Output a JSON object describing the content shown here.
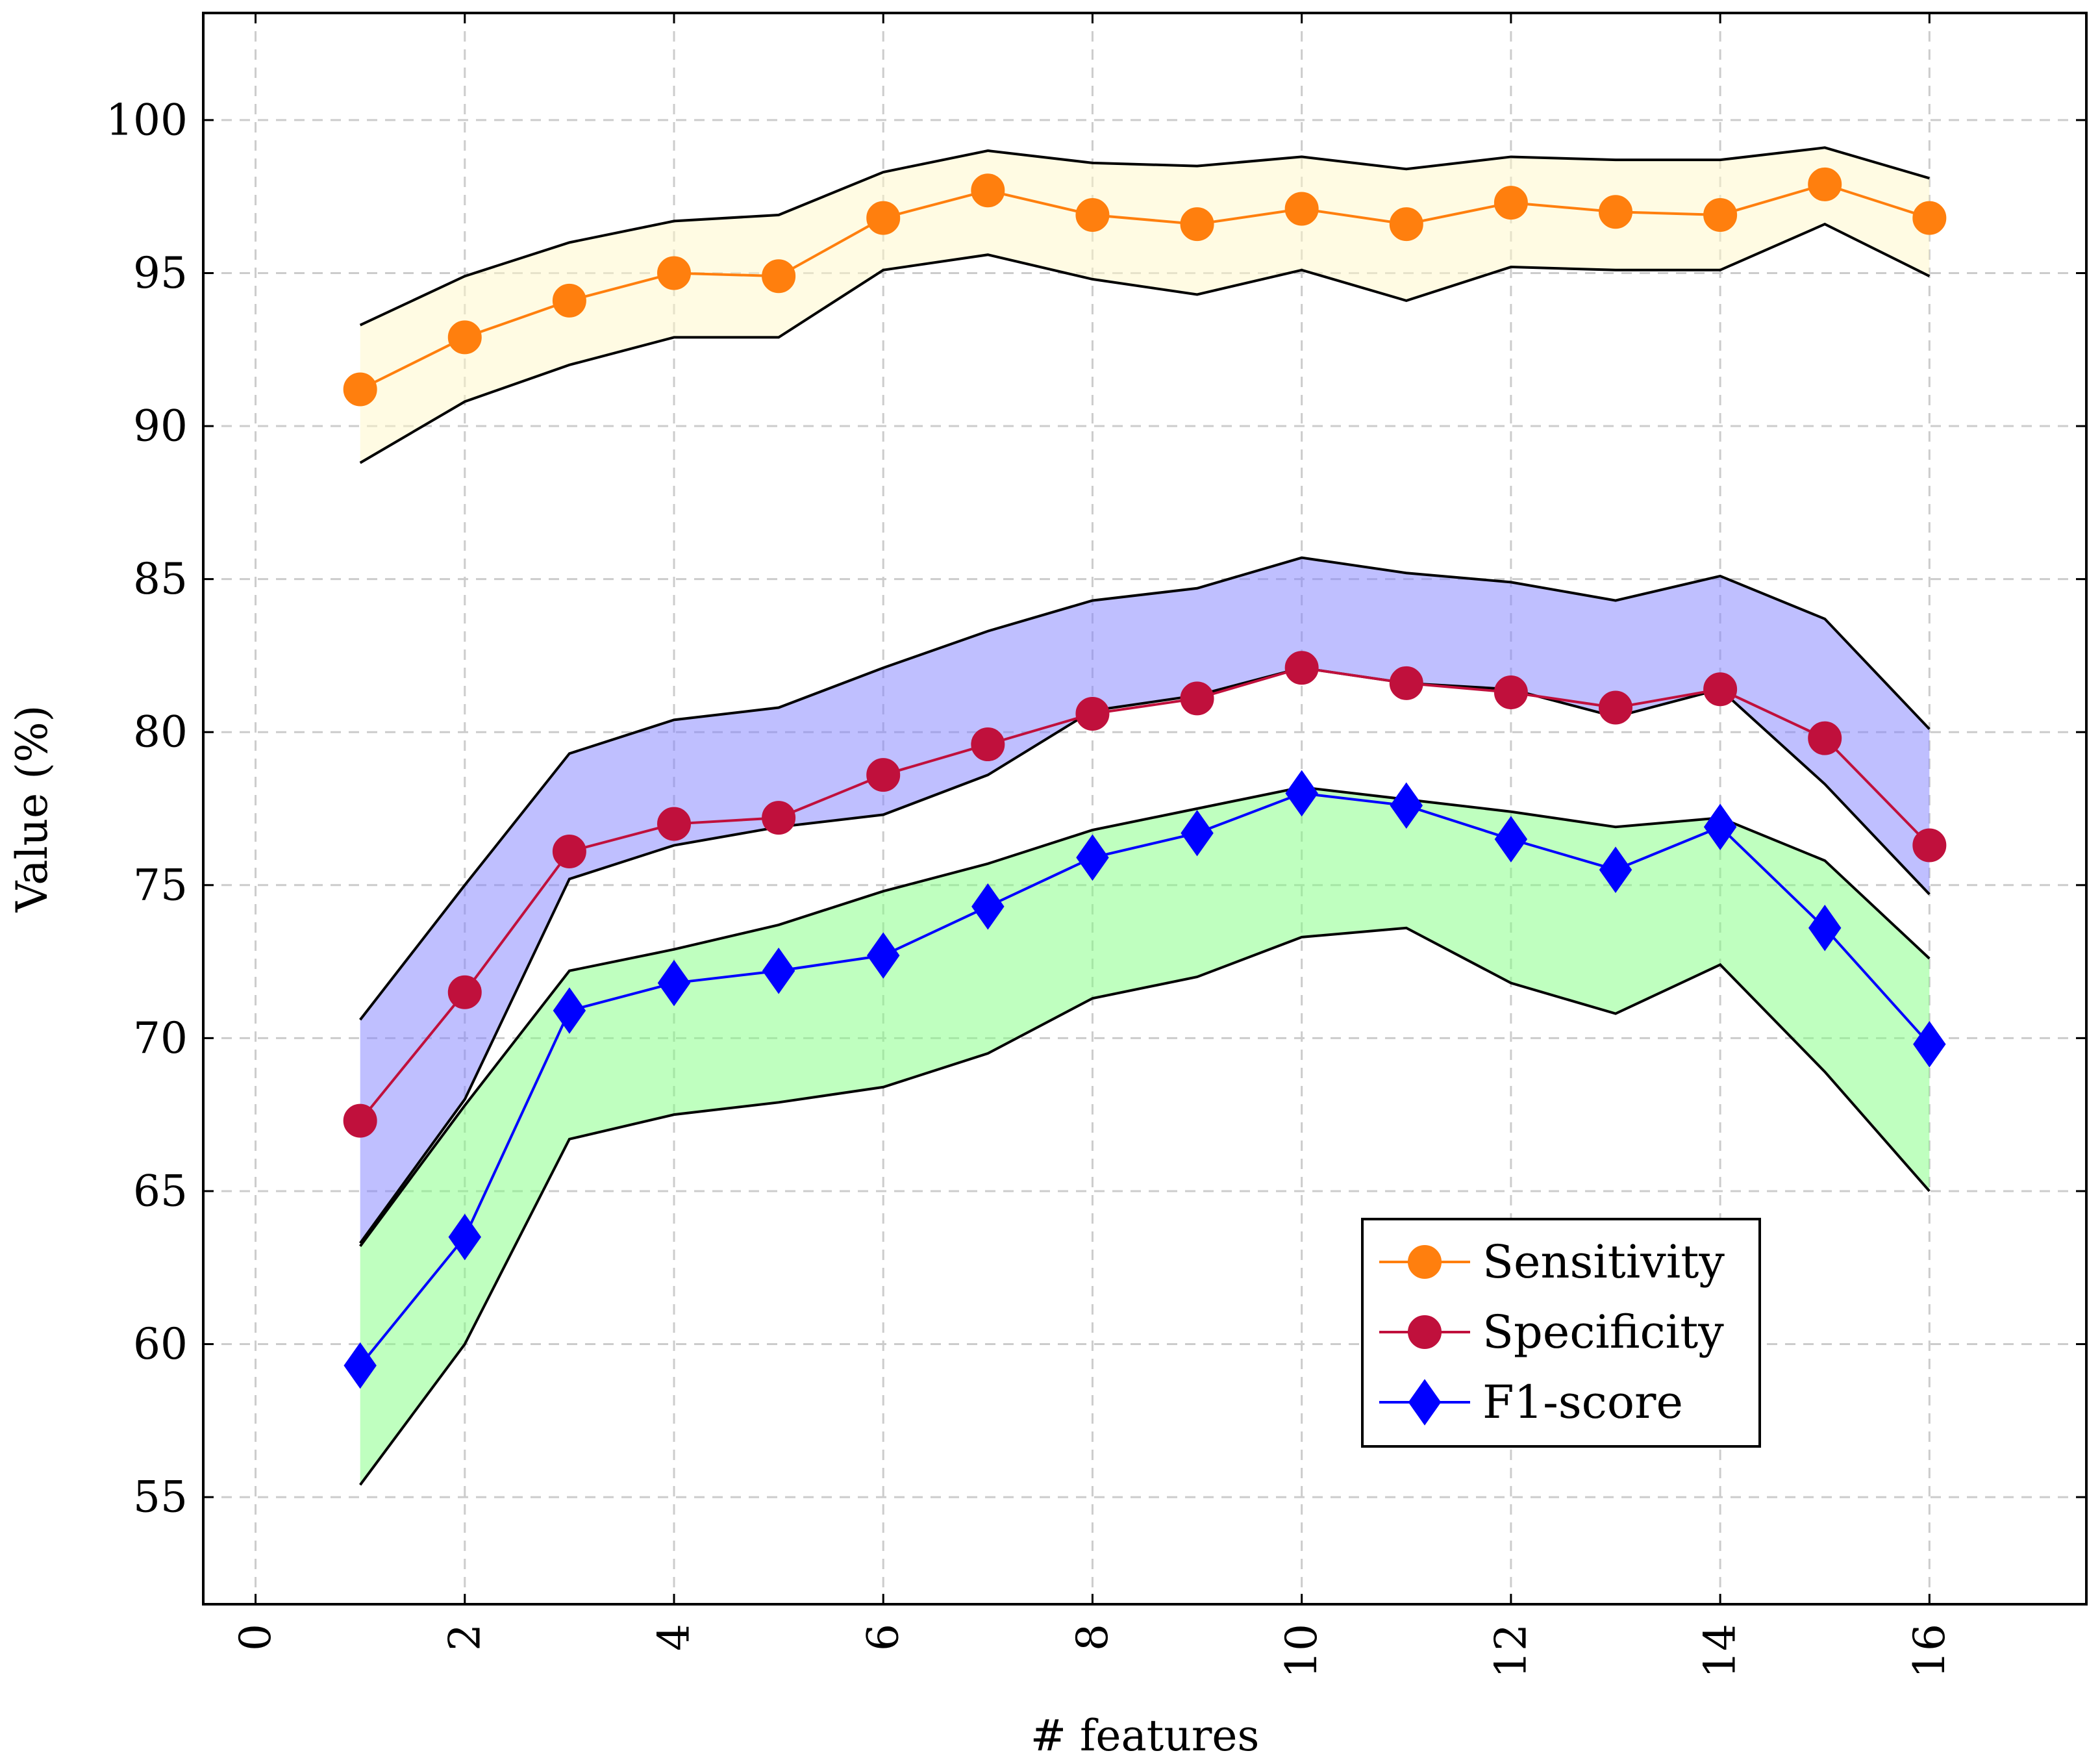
{
  "chart_data": {
    "type": "line",
    "xlabel": "# features",
    "ylabel": "Value (%)",
    "xlim": [
      -0.5,
      17.5
    ],
    "ylim": [
      51.5,
      103.5
    ],
    "xticks": [
      0,
      2,
      4,
      6,
      8,
      10,
      12,
      14,
      16
    ],
    "yticks": [
      55,
      60,
      65,
      70,
      75,
      80,
      85,
      90,
      95,
      100
    ],
    "grid": true,
    "legend_position": "bottom-right",
    "x": [
      1,
      2,
      3,
      4,
      5,
      6,
      7,
      8,
      9,
      10,
      11,
      12,
      13,
      14,
      15,
      16
    ],
    "series": [
      {
        "name": "Sensitivity",
        "color": "#ff7f0e",
        "marker": "circle",
        "band_color": "#fff7c8",
        "values": [
          91.2,
          92.9,
          94.1,
          95.0,
          94.9,
          96.8,
          97.7,
          96.9,
          96.6,
          97.1,
          96.6,
          97.3,
          97.0,
          96.9,
          97.9,
          96.8
        ],
        "upper": [
          93.3,
          94.9,
          96.0,
          96.7,
          96.9,
          98.3,
          99.0,
          98.6,
          98.5,
          98.8,
          98.4,
          98.8,
          98.7,
          98.7,
          99.1,
          98.1
        ],
        "lower": [
          88.8,
          90.8,
          92.0,
          92.9,
          92.9,
          95.1,
          95.6,
          94.8,
          94.3,
          95.1,
          94.1,
          95.2,
          95.1,
          95.1,
          96.6,
          94.9
        ]
      },
      {
        "name": "Specificity",
        "color": "#c0103c",
        "marker": "circle",
        "band_color": "#8080ff",
        "values": [
          67.3,
          71.5,
          76.1,
          77.0,
          77.2,
          78.6,
          79.6,
          80.6,
          81.1,
          82.1,
          81.6,
          81.3,
          80.8,
          81.4,
          79.8,
          76.3
        ],
        "upper": [
          70.6,
          75.0,
          79.3,
          80.4,
          80.8,
          82.1,
          83.3,
          84.3,
          84.7,
          85.7,
          85.2,
          84.9,
          84.3,
          85.1,
          83.7,
          80.1
        ],
        "lower": [
          63.3,
          68.0,
          75.2,
          76.3,
          76.9,
          77.3,
          78.6,
          80.7,
          81.2,
          82.1,
          81.6,
          81.4,
          80.5,
          81.4,
          78.3,
          74.7
        ]
      },
      {
        "name": "F1-score",
        "color": "#0000ff",
        "marker": "diamond",
        "band_color": "#80ff80",
        "values": [
          59.3,
          63.5,
          70.9,
          71.8,
          72.2,
          72.7,
          74.3,
          75.9,
          76.7,
          78.0,
          77.6,
          76.5,
          75.5,
          76.9,
          73.6,
          69.8
        ],
        "upper": [
          63.2,
          67.8,
          72.2,
          72.9,
          73.7,
          74.8,
          75.7,
          76.8,
          77.5,
          78.2,
          77.8,
          77.4,
          76.9,
          77.2,
          75.8,
          72.6
        ],
        "lower": [
          55.4,
          60.0,
          66.7,
          67.5,
          67.9,
          68.4,
          69.5,
          71.3,
          72.0,
          73.3,
          73.6,
          71.8,
          70.8,
          72.4,
          68.9,
          65.0
        ]
      }
    ]
  }
}
